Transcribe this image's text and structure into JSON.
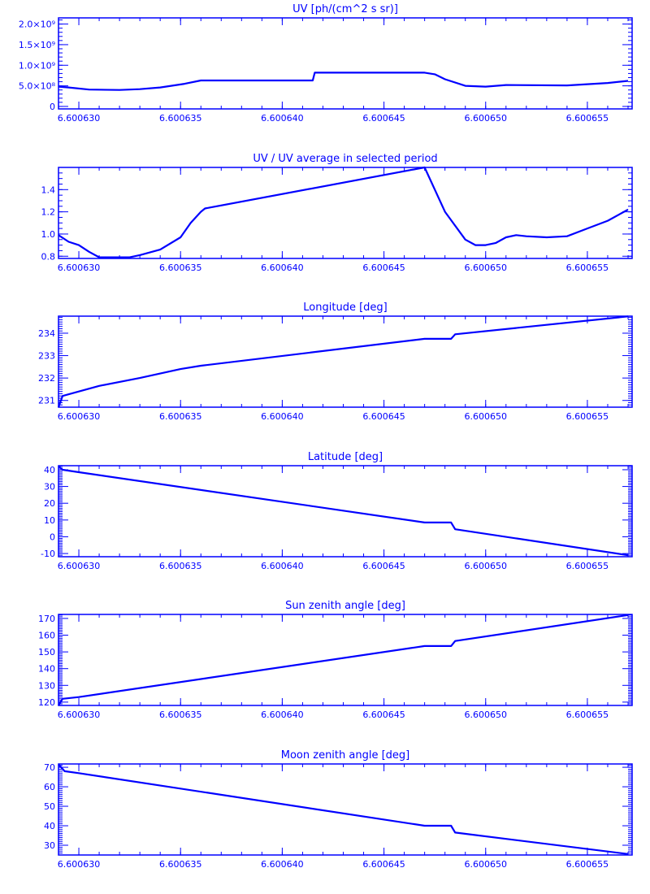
{
  "color": "#0000ff",
  "chart_data": [
    {
      "type": "line",
      "title": "UV [ph/(cm^2 s sr)]",
      "xlim": [
        6.600629,
        6.6006572
      ],
      "ylim": [
        -60000000.0,
        2150000000.0
      ],
      "xticks": [
        6.60063,
        6.600635,
        6.60064,
        6.600645,
        6.60065,
        6.600655
      ],
      "xtick_labels": [
        "6.600630",
        "6.600635",
        "6.600640",
        "6.600645",
        "6.600650",
        "6.600655"
      ],
      "yticks": [
        0,
        500000000.0,
        1000000000.0,
        1500000000.0,
        2000000000.0
      ],
      "ytick_labels": [
        "0",
        "5.0×10⁸",
        "1.0×10⁹",
        "1.5×10⁹",
        "2.0×10⁹"
      ],
      "yminor": 5,
      "x": [
        6.600629,
        6.6006295,
        6.6006305,
        6.600632,
        6.600633,
        6.600634,
        6.6006352,
        6.600636,
        6.6006415,
        6.6006416,
        6.600647,
        6.6006475,
        6.600648,
        6.600649,
        6.60065,
        6.600651,
        6.600654,
        6.600656,
        6.600657
      ],
      "y": [
        480000000.0,
        460000000.0,
        410000000.0,
        400000000.0,
        420000000.0,
        460000000.0,
        550000000.0,
        630000000.0,
        630000000.0,
        820000000.0,
        820000000.0,
        780000000.0,
        660000000.0,
        500000000.0,
        480000000.0,
        520000000.0,
        510000000.0,
        570000000.0,
        620000000.0
      ]
    },
    {
      "type": "line",
      "title": "UV / UV average in selected period",
      "xlim": [
        6.600629,
        6.6006572
      ],
      "ylim": [
        0.78,
        1.6
      ],
      "xticks": [
        6.60063,
        6.600635,
        6.60064,
        6.600645,
        6.60065,
        6.600655
      ],
      "xtick_labels": [
        "6.600630",
        "6.600635",
        "6.600640",
        "6.600645",
        "6.600650",
        "6.600655"
      ],
      "yticks": [
        0.8,
        1.0,
        1.2,
        1.4
      ],
      "ytick_labels": [
        "0.8",
        "1.0",
        "1.2",
        "1.4"
      ],
      "yminor": 4,
      "x": [
        6.600629,
        6.6006295,
        6.60063,
        6.6006305,
        6.600631,
        6.600632,
        6.6006325,
        6.600633,
        6.600634,
        6.600635,
        6.6006355,
        6.600636,
        6.6006362,
        6.600647,
        6.600648,
        6.600649,
        6.6006495,
        6.60065,
        6.6006505,
        6.600651,
        6.6006515,
        6.600652,
        6.600653,
        6.600654,
        6.600655,
        6.600656,
        6.600657
      ],
      "y": [
        0.99,
        0.93,
        0.9,
        0.84,
        0.79,
        0.79,
        0.79,
        0.81,
        0.86,
        0.97,
        1.1,
        1.2,
        1.23,
        1.6,
        1.2,
        0.95,
        0.9,
        0.9,
        0.92,
        0.97,
        0.99,
        0.98,
        0.97,
        0.98,
        1.05,
        1.12,
        1.22
      ]
    },
    {
      "type": "line",
      "title": "Longitude [deg]",
      "xlim": [
        6.600629,
        6.6006572
      ],
      "ylim": [
        230.7,
        234.76
      ],
      "xticks": [
        6.60063,
        6.600635,
        6.60064,
        6.600645,
        6.60065,
        6.600655
      ],
      "xtick_labels": [
        "6.600630",
        "6.600635",
        "6.600640",
        "6.600645",
        "6.600650",
        "6.600655"
      ],
      "yticks": [
        231,
        232,
        233,
        234
      ],
      "ytick_labels": [
        "231",
        "232",
        "233",
        "234"
      ],
      "yminor": 10,
      "x": [
        6.600629,
        6.6006292,
        6.60063,
        6.600631,
        6.600633,
        6.600635,
        6.600636,
        6.600647,
        6.6006483,
        6.6006485,
        6.600657
      ],
      "y": [
        230.7,
        231.2,
        231.4,
        231.65,
        232.0,
        232.4,
        232.55,
        233.75,
        233.75,
        233.95,
        234.75
      ]
    },
    {
      "type": "line",
      "title": "Latitude [deg]",
      "xlim": [
        6.600629,
        6.6006572
      ],
      "ylim": [
        -11.9,
        42.4
      ],
      "xticks": [
        6.60063,
        6.600635,
        6.60064,
        6.600645,
        6.60065,
        6.600655
      ],
      "xtick_labels": [
        "6.600630",
        "6.600635",
        "6.600640",
        "6.600645",
        "6.600650",
        "6.600655"
      ],
      "yticks": [
        -10,
        0,
        10,
        20,
        30,
        40
      ],
      "ytick_labels": [
        "-10",
        "0",
        "10",
        "20",
        "30",
        "40"
      ],
      "yminor": 10,
      "x": [
        6.600629,
        6.6006292,
        6.60063,
        6.600647,
        6.6006483,
        6.6006485,
        6.600657
      ],
      "y": [
        42,
        40,
        38.5,
        8.5,
        8.5,
        4.5,
        -11
      ]
    },
    {
      "type": "line",
      "title": "Sun zenith angle [deg]",
      "xlim": [
        6.600629,
        6.6006572
      ],
      "ylim": [
        118,
        172.4
      ],
      "xticks": [
        6.60063,
        6.600635,
        6.60064,
        6.600645,
        6.60065,
        6.600655
      ],
      "xtick_labels": [
        "6.600630",
        "6.600635",
        "6.600640",
        "6.600645",
        "6.600650",
        "6.600655"
      ],
      "yticks": [
        120,
        130,
        140,
        150,
        160,
        170
      ],
      "ytick_labels": [
        "120",
        "130",
        "140",
        "150",
        "160",
        "170"
      ],
      "yminor": 10,
      "x": [
        6.600629,
        6.6006292,
        6.60063,
        6.600647,
        6.6006483,
        6.6006485,
        6.600657
      ],
      "y": [
        118,
        122,
        123,
        153.5,
        153.5,
        156.5,
        172
      ]
    },
    {
      "type": "line",
      "title": "Moon zenith angle [deg]",
      "xlim": [
        6.600629,
        6.6006572
      ],
      "ylim": [
        25,
        71.7
      ],
      "xticks": [
        6.60063,
        6.600635,
        6.60064,
        6.600645,
        6.60065,
        6.600655
      ],
      "xtick_labels": [
        "6.600630",
        "6.600635",
        "6.600640",
        "6.600645",
        "6.600650",
        "6.600655"
      ],
      "yticks": [
        30,
        40,
        50,
        60,
        70
      ],
      "ytick_labels": [
        "30",
        "40",
        "50",
        "60",
        "70"
      ],
      "yminor": 10,
      "x": [
        6.600629,
        6.6006293,
        6.60063,
        6.600647,
        6.6006483,
        6.6006485,
        6.600657
      ],
      "y": [
        71.5,
        68,
        67,
        40,
        40,
        36.5,
        25.5
      ]
    }
  ]
}
